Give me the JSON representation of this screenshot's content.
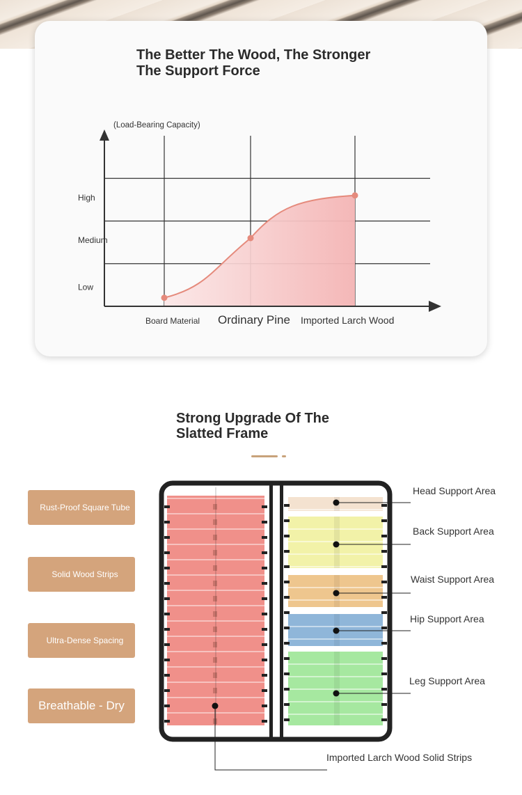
{
  "chart_data": {
    "type": "area",
    "title": "The Better The Wood, The Stronger The Support Force",
    "title_lines": [
      "The Better The Wood, The Stronger",
      "The Support Force"
    ],
    "ylabel": "(Load-Bearing Capacity)",
    "y_ticks": [
      "Low",
      "Medium",
      "High"
    ],
    "ylim": [
      0,
      4
    ],
    "categories": [
      "Board Material",
      "Ordinary Pine",
      "Imported Larch Wood"
    ],
    "values": [
      0.2,
      1.6,
      2.6
    ],
    "grid": true,
    "colors": {
      "line": "#e58a7c",
      "fill_start": "#f8dcdc",
      "fill_end": "#f4b8b8",
      "axis": "#333333"
    }
  },
  "frame_section": {
    "title_lines": [
      "Strong Upgrade Of The",
      "Slatted Frame"
    ],
    "features": [
      "Rust-Proof Square Tube",
      "Solid Wood Strips",
      "Ultra-Dense Spacing",
      "Breathable - Dry"
    ],
    "areas": [
      "Head Support Area",
      "Back Support Area",
      "Waist Support Area",
      "Hip Support Area",
      "Leg Support Area"
    ],
    "bottom_label": "Imported Larch Wood Solid Strips",
    "colors": {
      "button": "#d4a47c",
      "head": "#f4e2d0",
      "back": "#f2f2a8",
      "waist": "#eec68e",
      "hip": "#8fb6d9",
      "leg": "#a6e8a0",
      "left_panel": "#f0908a",
      "frame": "#222222"
    }
  }
}
